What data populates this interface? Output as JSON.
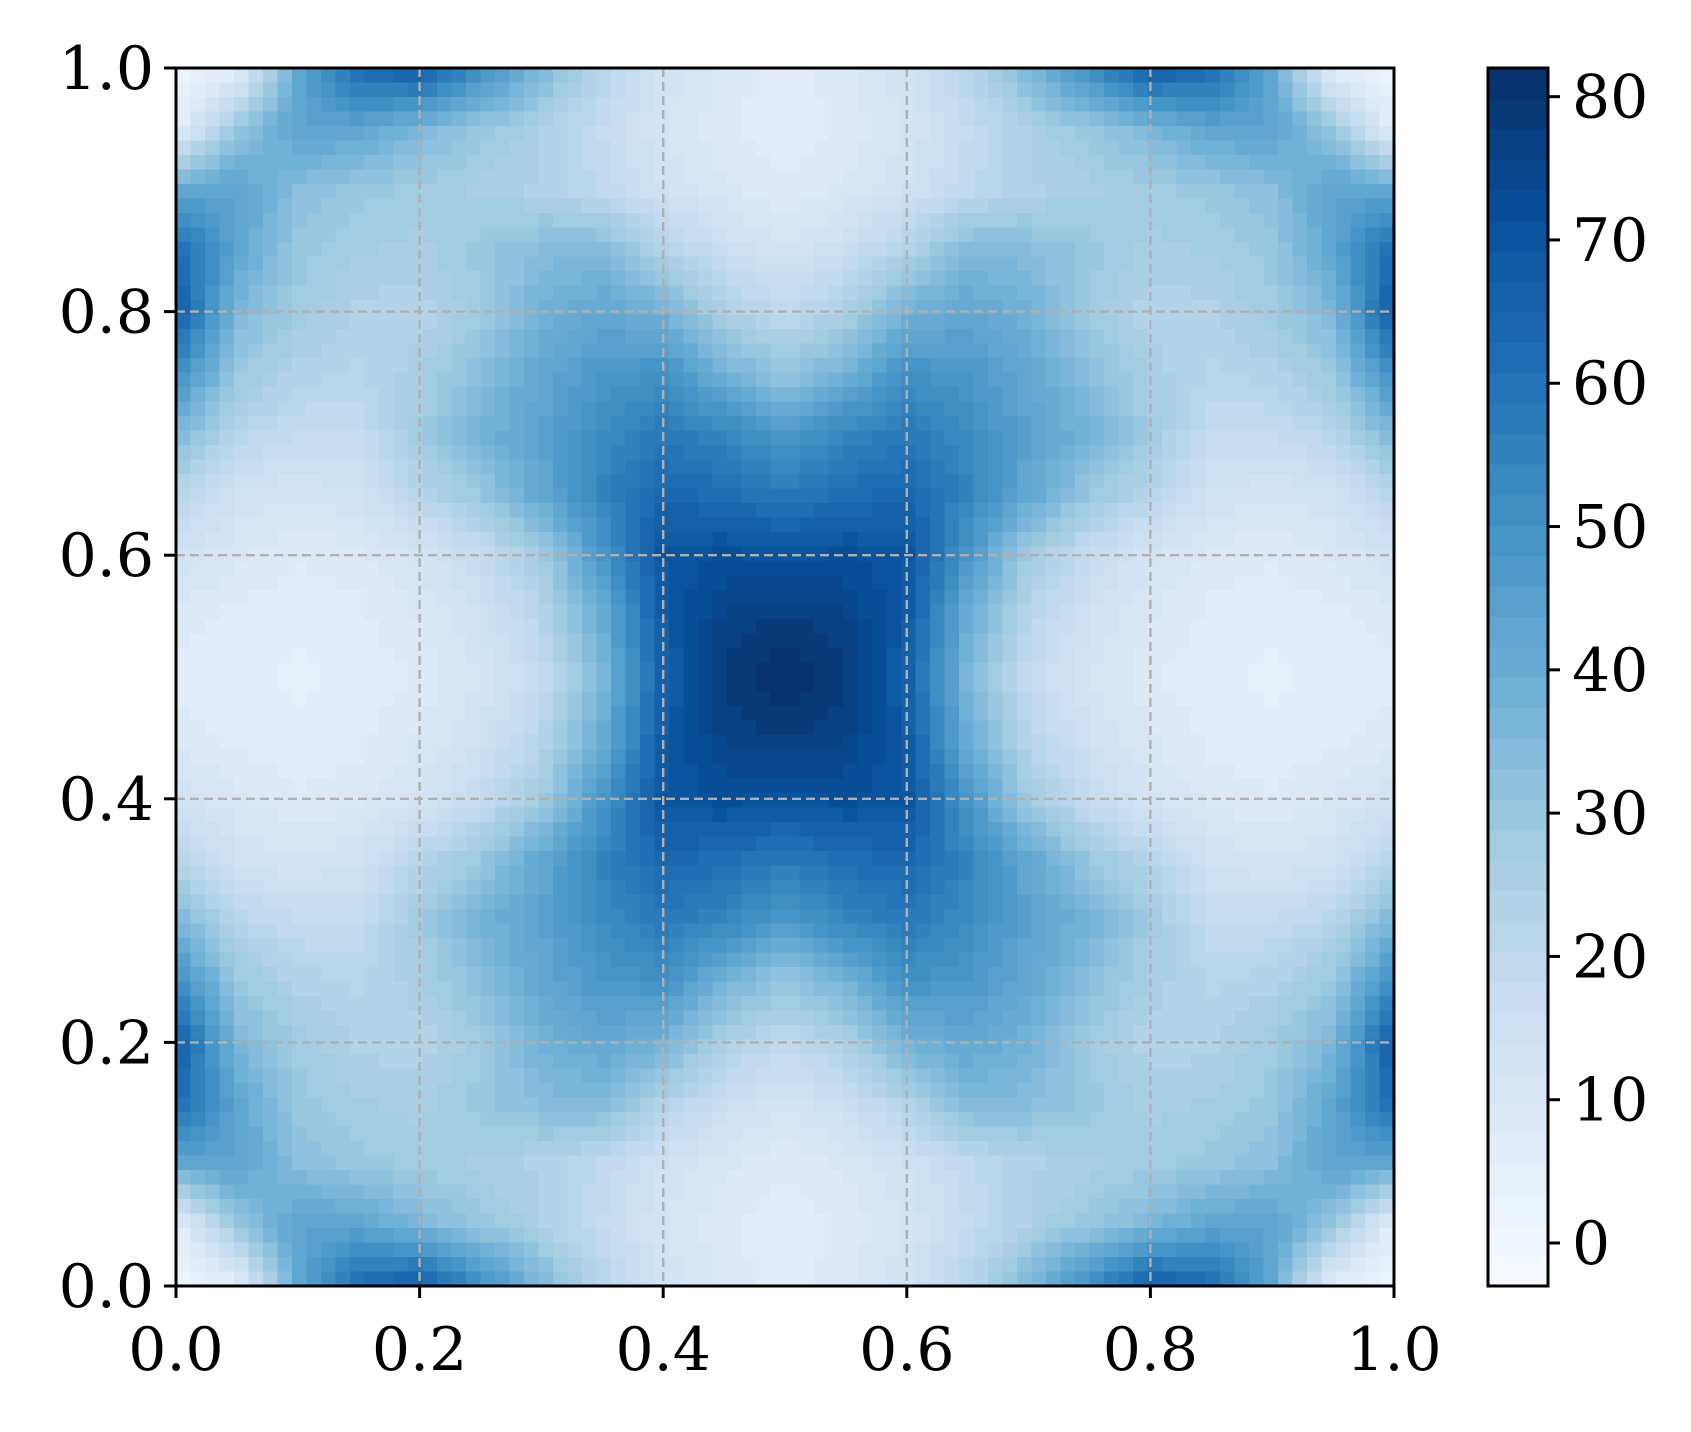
{
  "chart_data": {
    "type": "heatmap",
    "title": "",
    "xlabel": "",
    "ylabel": "",
    "xlim": [
      0.0,
      1.0
    ],
    "ylim": [
      0.0,
      1.0
    ],
    "grid": true,
    "grid_style": "dashed",
    "x_ticks": [
      "0.0",
      "0.2",
      "0.4",
      "0.6",
      "0.8",
      "1.0"
    ],
    "y_ticks": [
      "0.0",
      "0.2",
      "0.4",
      "0.6",
      "0.8",
      "1.0"
    ],
    "colormap": "Blues",
    "colormap_stops": [
      "#f7fbff",
      "#deebf7",
      "#c6dbef",
      "#9ecae1",
      "#6baed6",
      "#4292c6",
      "#2171b5",
      "#08519c",
      "#08306b"
    ],
    "colorbar": {
      "range": [
        -3,
        82
      ],
      "ticks": [
        0,
        10,
        20,
        30,
        40,
        50,
        60,
        70,
        80
      ],
      "tick_labels": [
        "0",
        "10",
        "20",
        "30",
        "40",
        "50",
        "60",
        "70",
        "80"
      ],
      "levels": 40
    },
    "x": [
      0.0,
      0.05,
      0.1,
      0.15,
      0.2,
      0.25,
      0.3,
      0.35,
      0.4,
      0.45,
      0.5,
      0.55,
      0.6,
      0.65,
      0.7,
      0.75,
      0.8,
      0.85,
      0.9,
      0.95,
      1.0
    ],
    "y": [
      0.0,
      0.05,
      0.1,
      0.15,
      0.2,
      0.25,
      0.3,
      0.35,
      0.4,
      0.45,
      0.5,
      0.55,
      0.6,
      0.65,
      0.7,
      0.75,
      0.8,
      0.85,
      0.9,
      0.95,
      1.0
    ],
    "z": [
      [
        2,
        5,
        42,
        63,
        68,
        52,
        36,
        22,
        14,
        9,
        7,
        9,
        14,
        22,
        36,
        52,
        68,
        63,
        42,
        5,
        2
      ],
      [
        5,
        30,
        44,
        43,
        36,
        30,
        25,
        18,
        12,
        8,
        6,
        8,
        12,
        18,
        25,
        30,
        36,
        43,
        44,
        30,
        5
      ],
      [
        42,
        44,
        33,
        30,
        28,
        26,
        24,
        20,
        14,
        10,
        8,
        10,
        14,
        20,
        24,
        26,
        28,
        30,
        33,
        44,
        42
      ],
      [
        63,
        43,
        30,
        27,
        26,
        30,
        34,
        35,
        24,
        16,
        12,
        16,
        24,
        35,
        34,
        30,
        26,
        27,
        30,
        43,
        63
      ],
      [
        68,
        36,
        28,
        24,
        23,
        28,
        38,
        42,
        38,
        25,
        20,
        25,
        38,
        42,
        38,
        28,
        23,
        24,
        28,
        36,
        68
      ],
      [
        52,
        30,
        24,
        22,
        26,
        33,
        42,
        48,
        50,
        38,
        30,
        38,
        50,
        48,
        42,
        33,
        26,
        22,
        24,
        30,
        52
      ],
      [
        36,
        22,
        18,
        18,
        28,
        38,
        44,
        52,
        58,
        54,
        48,
        54,
        58,
        52,
        44,
        38,
        28,
        18,
        18,
        22,
        36
      ],
      [
        22,
        14,
        12,
        14,
        22,
        30,
        42,
        55,
        64,
        62,
        58,
        62,
        64,
        55,
        42,
        30,
        22,
        14,
        12,
        14,
        22
      ],
      [
        14,
        10,
        8,
        9,
        12,
        18,
        28,
        48,
        70,
        72,
        70,
        72,
        70,
        48,
        28,
        18,
        12,
        9,
        8,
        10,
        14
      ],
      [
        9,
        7,
        6,
        7,
        10,
        14,
        22,
        40,
        68,
        76,
        78,
        76,
        68,
        40,
        22,
        14,
        10,
        7,
        6,
        7,
        9
      ],
      [
        7,
        6,
        5,
        6,
        8,
        12,
        18,
        36,
        66,
        78,
        82,
        78,
        66,
        36,
        18,
        12,
        8,
        6,
        5,
        6,
        7
      ],
      [
        9,
        7,
        6,
        7,
        10,
        14,
        22,
        40,
        68,
        76,
        78,
        76,
        68,
        40,
        22,
        14,
        10,
        7,
        6,
        7,
        9
      ],
      [
        14,
        10,
        8,
        9,
        12,
        18,
        28,
        48,
        70,
        72,
        70,
        72,
        70,
        48,
        28,
        18,
        12,
        9,
        8,
        10,
        14
      ],
      [
        22,
        14,
        12,
        14,
        22,
        30,
        42,
        55,
        64,
        62,
        58,
        62,
        64,
        55,
        42,
        30,
        22,
        14,
        12,
        14,
        22
      ],
      [
        36,
        22,
        18,
        18,
        28,
        38,
        44,
        52,
        58,
        54,
        48,
        54,
        58,
        52,
        44,
        38,
        28,
        18,
        18,
        22,
        36
      ],
      [
        52,
        30,
        24,
        22,
        26,
        33,
        42,
        48,
        50,
        38,
        30,
        38,
        50,
        48,
        42,
        33,
        26,
        22,
        24,
        30,
        52
      ],
      [
        68,
        36,
        28,
        24,
        23,
        28,
        38,
        42,
        38,
        25,
        20,
        25,
        38,
        42,
        38,
        28,
        23,
        24,
        28,
        36,
        68
      ],
      [
        63,
        43,
        30,
        27,
        26,
        30,
        34,
        35,
        24,
        16,
        12,
        16,
        24,
        35,
        34,
        30,
        26,
        27,
        30,
        43,
        63
      ],
      [
        42,
        44,
        33,
        30,
        28,
        26,
        24,
        20,
        14,
        10,
        8,
        10,
        14,
        20,
        24,
        26,
        28,
        30,
        33,
        44,
        42
      ],
      [
        5,
        30,
        44,
        43,
        36,
        30,
        25,
        18,
        12,
        8,
        6,
        8,
        12,
        18,
        25,
        30,
        36,
        43,
        44,
        30,
        5
      ],
      [
        2,
        5,
        42,
        63,
        68,
        52,
        36,
        22,
        14,
        9,
        7,
        9,
        14,
        22,
        36,
        52,
        68,
        63,
        42,
        5,
        2
      ]
    ]
  }
}
